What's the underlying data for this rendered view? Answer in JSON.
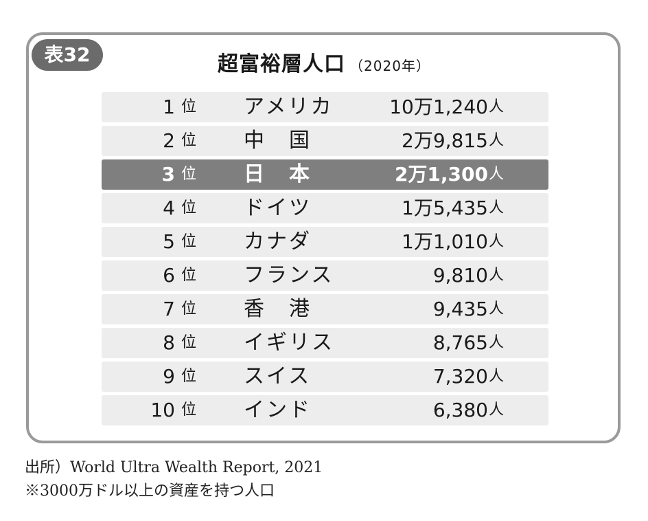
{
  "badge": "表32",
  "title": "超富裕層人口",
  "title_year": "（2020年）",
  "rows": [
    {
      "rank": "1",
      "rank_unit": "位",
      "country": "アメリカ",
      "value": "10万1,240",
      "unit": "人",
      "highlight": false
    },
    {
      "rank": "2",
      "rank_unit": "位",
      "country": "中　国",
      "value": "2万9,815",
      "unit": "人",
      "highlight": false
    },
    {
      "rank": "3",
      "rank_unit": "位",
      "country": "日　本",
      "value": "2万1,300",
      "unit": "人",
      "highlight": true
    },
    {
      "rank": "4",
      "rank_unit": "位",
      "country": "ドイツ",
      "value": "1万5,435",
      "unit": "人",
      "highlight": false
    },
    {
      "rank": "5",
      "rank_unit": "位",
      "country": "カナダ",
      "value": "1万1,010",
      "unit": "人",
      "highlight": false
    },
    {
      "rank": "6",
      "rank_unit": "位",
      "country": "フランス",
      "value": "9,810",
      "unit": "人",
      "highlight": false
    },
    {
      "rank": "7",
      "rank_unit": "位",
      "country": "香　港",
      "value": "9,435",
      "unit": "人",
      "highlight": false
    },
    {
      "rank": "8",
      "rank_unit": "位",
      "country": "イギリス",
      "value": "8,765",
      "unit": "人",
      "highlight": false
    },
    {
      "rank": "9",
      "rank_unit": "位",
      "country": "スイス",
      "value": "7,320",
      "unit": "人",
      "highlight": false
    },
    {
      "rank": "10",
      "rank_unit": "位",
      "country": "インド",
      "value": "6,380",
      "unit": "人",
      "highlight": false
    }
  ],
  "source_note": "出所）World Ultra Wealth Report, 2021",
  "asset_note": "※3000万ドル以上の資産を持つ人口"
}
